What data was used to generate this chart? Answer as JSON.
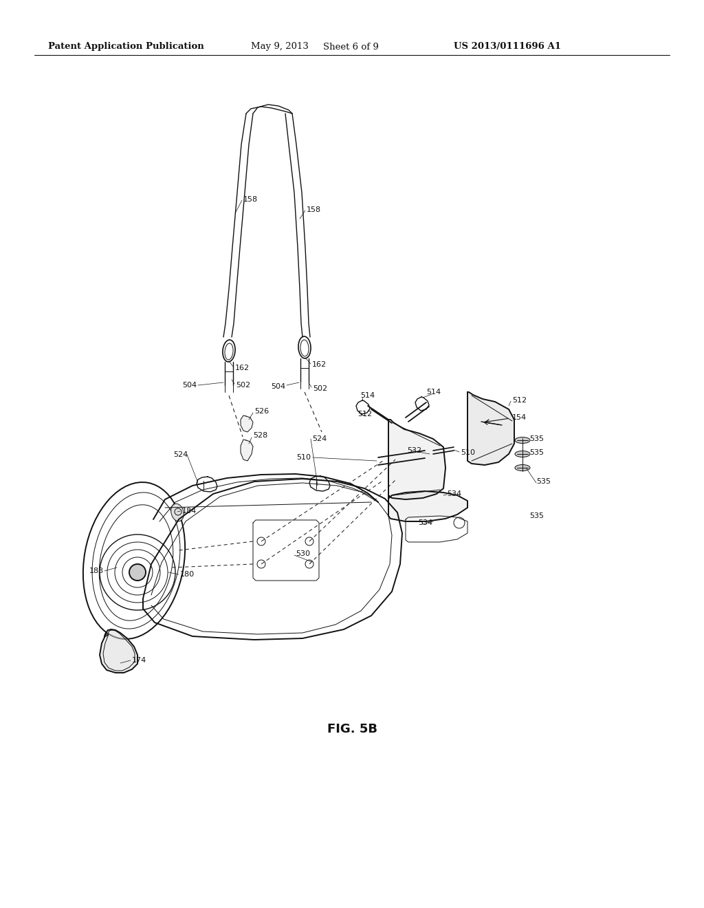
{
  "bg_color": "#ffffff",
  "header_left": "Patent Application Publication",
  "header_mid": "May 9, 2013  Sheet 6 of 9",
  "header_right": "US 2013/0111696 A1",
  "figure_label": "FIG. 5B",
  "title_fontsize": 9.5,
  "label_fontsize": 8.0,
  "fig_label_fontsize": 13
}
